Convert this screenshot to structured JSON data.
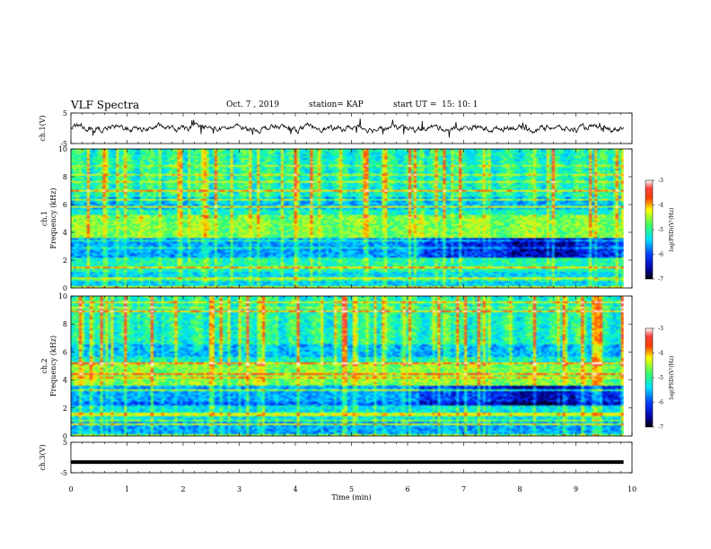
{
  "header": {
    "title": "VLF Spectra",
    "date": "Oct. 7 , 2019",
    "station": "station= KAP",
    "start": "start UT =",
    "start_time": "15: 10: 1"
  },
  "chart_data": [
    {
      "type": "line",
      "panel": "ch1-waveform",
      "xlabel": "",
      "ylabel": "ch.1(V)",
      "ylim": [
        -5,
        5
      ],
      "yticks": [
        "5",
        "-5"
      ],
      "series": [
        {
          "values_summary": "noisy waveform around ~0 V with spikes to about +/-3 V"
        }
      ]
    },
    {
      "type": "heatmap",
      "panel": "ch1-spectrogram",
      "ylabel": [
        "ch.1",
        "Frequency (kHz)"
      ],
      "ylim": [
        0,
        10
      ],
      "yticks": [
        "0",
        "2",
        "4",
        "6",
        "8",
        "10"
      ],
      "colorbar": {
        "label": "log(PSD)(V²/Hz)",
        "ticks": [
          "-3",
          "-4",
          "-5",
          "-6",
          "-7"
        ],
        "range": [
          -7,
          -3
        ]
      }
    },
    {
      "type": "heatmap",
      "panel": "ch2-spectrogram",
      "ylabel": [
        "ch.2",
        "Frequency (kHz)"
      ],
      "ylim": [
        0,
        10
      ],
      "yticks": [
        "0",
        "2",
        "4",
        "6",
        "8",
        "10"
      ],
      "colorbar": {
        "label": "log(PSD)(V²/Hz)",
        "ticks": [
          "-3",
          "-4",
          "-5",
          "-6",
          "-7"
        ],
        "range": [
          -7,
          -3
        ]
      }
    },
    {
      "type": "line",
      "panel": "ch3-waveform",
      "ylabel": "ch.3(V)",
      "ylim": [
        -5,
        5
      ],
      "yticks": [
        "5",
        "-5"
      ],
      "series": [
        {
          "values_summary": "flat line near -1.5 V"
        }
      ]
    }
  ],
  "x_axis": {
    "label": "Time (min)",
    "range": [
      0,
      10
    ],
    "ticks": [
      "0",
      "1",
      "2",
      "3",
      "4",
      "5",
      "6",
      "7",
      "8",
      "9",
      "10"
    ]
  },
  "colors": {
    "scale": [
      "#000080",
      "#0000ff",
      "#00a0ff",
      "#00ffff",
      "#40ff80",
      "#ffff00",
      "#ff8000",
      "#ff0000",
      "#ffffff"
    ]
  }
}
